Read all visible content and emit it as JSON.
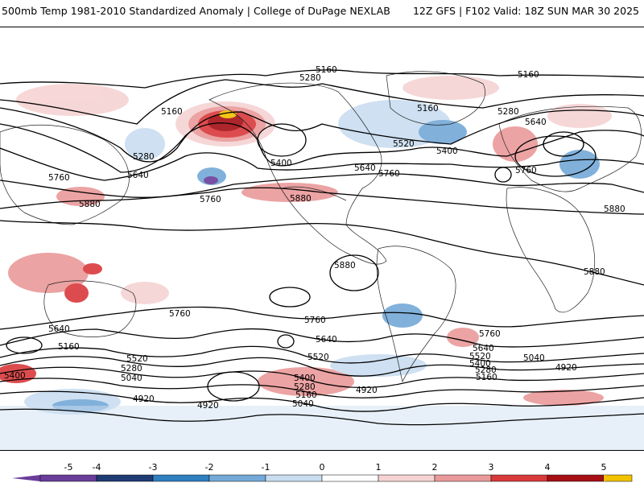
{
  "header": {
    "title_left": "500mb Temp 1981-2010 Standardized Anomaly | College of DuPage NEXLAB",
    "title_right": "12Z GFS | F102 Valid: 18Z SUN MAR 30 2025"
  },
  "colorbar": {
    "ticks": [
      "-5",
      "-4",
      "-3",
      "-2",
      "-1",
      "0",
      "1",
      "2",
      "3",
      "4",
      "5"
    ],
    "colors": [
      "#6a3d9a",
      "#1f3b73",
      "#2f7fc1",
      "#74a9d8",
      "#c9ddf0",
      "#ffffff",
      "#f6d3d3",
      "#ea9a9a",
      "#d9393b",
      "#a50f15",
      "#f2c200"
    ]
  },
  "contour_labels": [
    {
      "text": "5160"
    },
    {
      "text": "5280"
    },
    {
      "text": "5160"
    },
    {
      "text": "5160"
    },
    {
      "text": "5160"
    },
    {
      "text": "5280"
    },
    {
      "text": "5640"
    },
    {
      "text": "5400"
    },
    {
      "text": "5520"
    },
    {
      "text": "5400"
    },
    {
      "text": "5280"
    },
    {
      "text": "5640"
    },
    {
      "text": "5640"
    },
    {
      "text": "5760"
    },
    {
      "text": "5760"
    },
    {
      "text": "5760"
    },
    {
      "text": "5880"
    },
    {
      "text": "5880"
    },
    {
      "text": "5760"
    },
    {
      "text": "5880"
    },
    {
      "text": "5880"
    },
    {
      "text": "5880"
    },
    {
      "text": "5760"
    },
    {
      "text": "5640"
    },
    {
      "text": "5760"
    },
    {
      "text": "5640"
    },
    {
      "text": "5760"
    },
    {
      "text": "5160"
    },
    {
      "text": "5520"
    },
    {
      "text": "5280"
    },
    {
      "text": "5040"
    },
    {
      "text": "5520"
    },
    {
      "text": "5400"
    },
    {
      "text": "5280"
    },
    {
      "text": "5160"
    },
    {
      "text": "5040"
    },
    {
      "text": "4920"
    },
    {
      "text": "4920"
    },
    {
      "text": "4920"
    },
    {
      "text": "5640"
    },
    {
      "text": "5520"
    },
    {
      "text": "5400"
    },
    {
      "text": "5280"
    },
    {
      "text": "5160"
    },
    {
      "text": "5040"
    },
    {
      "text": "4920"
    },
    {
      "text": "5400"
    }
  ]
}
